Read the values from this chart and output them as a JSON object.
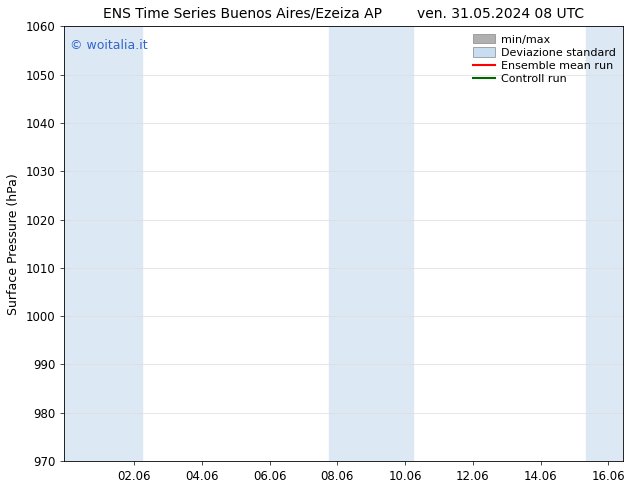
{
  "title": "ENS Time Series Buenos Aires/Ezeiza AP        ven. 31.05.2024 08 UTC",
  "ylabel": "Surface Pressure (hPa)",
  "ylim": [
    970,
    1060
  ],
  "yticks": [
    970,
    980,
    990,
    1000,
    1010,
    1020,
    1030,
    1040,
    1050,
    1060
  ],
  "xlim": [
    0.0,
    16.5
  ],
  "xtick_labels": [
    "02.06",
    "04.06",
    "06.06",
    "08.06",
    "10.06",
    "12.06",
    "14.06",
    "16.06"
  ],
  "xtick_positions": [
    2.06,
    4.06,
    6.06,
    8.06,
    10.06,
    12.06,
    14.06,
    16.06
  ],
  "shaded_bands": [
    {
      "x_start": 0.0,
      "x_end": 2.3
    },
    {
      "x_start": 7.8,
      "x_end": 10.3
    },
    {
      "x_start": 15.4,
      "x_end": 16.5
    }
  ],
  "band_color": "#dce9f5",
  "background_color": "#ffffff",
  "watermark_text": "© woitalia.it",
  "watermark_color": "#3366cc",
  "legend_entries": [
    {
      "label": "min/max",
      "color": "#b0b0b0",
      "type": "rect"
    },
    {
      "label": "Deviazione standard",
      "color": "#c8ddf0",
      "type": "rect"
    },
    {
      "label": "Ensemble mean run",
      "color": "#ff0000",
      "type": "line"
    },
    {
      "label": "Controll run",
      "color": "#006600",
      "type": "line"
    }
  ],
  "title_fontsize": 10,
  "axis_fontsize": 9,
  "tick_fontsize": 8.5,
  "legend_fontsize": 8
}
